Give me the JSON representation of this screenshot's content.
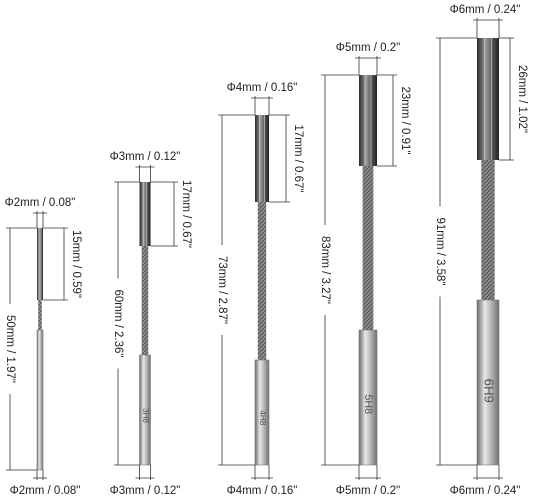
{
  "tools": [
    {
      "top_diameter": "Φ2mm / 0.08\"",
      "flute_length": "15mm / 0.59\"",
      "total_length": "50mm / 1.97\"",
      "bottom_diameter": "Φ2mm / 0.08\""
    },
    {
      "top_diameter": "Φ3mm / 0.12\"",
      "flute_length": "17mm / 0.67\"",
      "total_length": "60mm / 2.36\"",
      "bottom_diameter": "Φ3mm / 0.12\"",
      "marking": "3H8"
    },
    {
      "top_diameter": "Φ4mm / 0.16\"",
      "flute_length": "17mm / 0.67\"",
      "total_length": "73mm / 2.87\"",
      "bottom_diameter": "Φ4mm / 0.16\"",
      "marking": "4H8"
    },
    {
      "top_diameter": "Φ5mm / 0.2\"",
      "flute_length": "23mm / 0.91\"",
      "total_length": "83mm / 3.27\"",
      "bottom_diameter": "Φ5mm / 0.2\"",
      "marking": "5H8"
    },
    {
      "top_diameter": "Φ6mm / 0.24\"",
      "flute_length": "26mm / 1.02\"",
      "total_length": "91mm / 3.58\"",
      "bottom_diameter": "Φ6mm / 0.24\"",
      "marking": "6H9"
    }
  ]
}
